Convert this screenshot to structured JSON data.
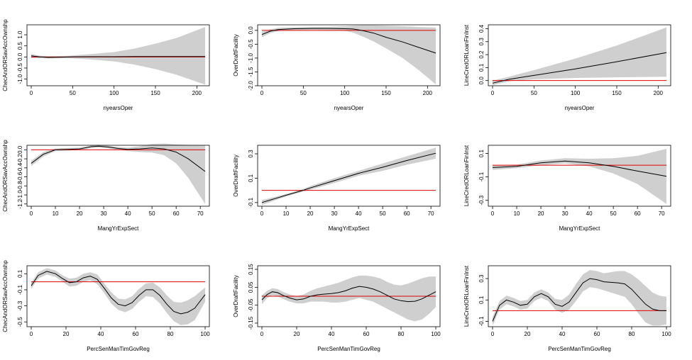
{
  "colors": {
    "band": "#cfcfcf",
    "fit": "#000000",
    "reference": "#e00000",
    "frame": "#000000"
  },
  "chart_data": [
    {
      "type": "line",
      "xlabel": "nyearsOper",
      "ylabel": "ChecAndORSavAccOwnshp",
      "xlim": [
        0,
        210
      ],
      "ylim": [
        -1.3,
        1.45
      ],
      "xticks": [
        0,
        50,
        100,
        150,
        200
      ],
      "yticks": [
        -1.0,
        -0.5,
        0.0,
        0.5,
        1.0
      ],
      "ytick_labels": [
        "-1.0",
        "-0.5",
        "0.0",
        "0.5",
        "1.0"
      ],
      "reference_line": 0,
      "x": [
        0,
        10,
        20,
        35,
        50,
        75,
        100,
        125,
        150,
        175,
        210
      ],
      "fit": [
        0.05,
        0.0,
        -0.02,
        -0.01,
        0.0,
        0.01,
        0.01,
        0.02,
        0.02,
        0.02,
        0.02
      ],
      "lower": [
        -0.05,
        -0.06,
        -0.07,
        -0.06,
        -0.07,
        -0.12,
        -0.2,
        -0.35,
        -0.55,
        -0.8,
        -1.25
      ],
      "upper": [
        0.13,
        0.06,
        0.03,
        0.04,
        0.07,
        0.14,
        0.22,
        0.38,
        0.6,
        0.85,
        1.35
      ]
    },
    {
      "type": "line",
      "xlabel": "nyearsOper",
      "ylabel": "OverDraftFacility",
      "xlim": [
        0,
        210
      ],
      "ylim": [
        -2.0,
        0.2
      ],
      "xticks": [
        0,
        50,
        100,
        150,
        200
      ],
      "yticks": [
        -2.0,
        -1.5,
        -1.0,
        -0.5,
        0.0
      ],
      "ytick_labels": [
        "-2.0",
        "-1.5",
        "-1.0",
        "-0.5",
        "0.0"
      ],
      "reference_line": 0,
      "x": [
        0,
        10,
        20,
        40,
        60,
        80,
        100,
        110,
        120,
        135,
        150,
        170,
        190,
        210
      ],
      "fit": [
        -0.15,
        -0.03,
        0.03,
        0.06,
        0.07,
        0.07,
        0.06,
        0.05,
        0.0,
        -0.1,
        -0.25,
        -0.42,
        -0.62,
        -0.82
      ],
      "lower": [
        -0.25,
        -0.1,
        -0.03,
        0.01,
        0.02,
        0.01,
        -0.02,
        -0.08,
        -0.2,
        -0.4,
        -0.65,
        -1.0,
        -1.45,
        -1.95
      ],
      "upper": [
        -0.05,
        0.04,
        0.09,
        0.11,
        0.12,
        0.13,
        0.15,
        0.17,
        0.18,
        0.18,
        0.17,
        0.15,
        0.12,
        0.1
      ]
    },
    {
      "type": "line",
      "xlabel": "nyearsOper",
      "ylabel": "LineCredORLoanFinInst",
      "xlim": [
        0,
        210
      ],
      "ylim": [
        -0.04,
        0.43
      ],
      "xticks": [
        0,
        50,
        100,
        150,
        200
      ],
      "yticks": [
        0.0,
        0.1,
        0.2,
        0.3,
        0.4
      ],
      "ytick_labels": [
        "0.0",
        "0.1",
        "0.2",
        "0.3",
        "0.4"
      ],
      "reference_line": 0,
      "x": [
        0,
        20,
        50,
        100,
        150,
        210
      ],
      "fit": [
        -0.02,
        0.01,
        0.04,
        0.09,
        0.145,
        0.215
      ],
      "lower": [
        -0.035,
        -0.005,
        0.01,
        0.02,
        0.025,
        0.03
      ],
      "upper": [
        0.0,
        0.03,
        0.08,
        0.17,
        0.27,
        0.41
      ]
    },
    {
      "type": "line",
      "xlabel": "MangYrExpSect",
      "ylabel": "ChecAndORSavAccOwnshp",
      "xlim": [
        0,
        72
      ],
      "ylim": [
        -1.25,
        0.1
      ],
      "xticks": [
        0,
        10,
        20,
        30,
        40,
        50,
        60,
        70
      ],
      "yticks": [
        -1.2,
        -1.0,
        -0.8,
        -0.6,
        -0.4,
        -0.2,
        0.0
      ],
      "ytick_labels": [
        "-1.2",
        "-1.0",
        "-0.8",
        "-0.6",
        "-0.4",
        "-0.2",
        "0.0"
      ],
      "reference_line": 0,
      "x": [
        0,
        5,
        10,
        15,
        20,
        25,
        28,
        32,
        36,
        40,
        45,
        50,
        55,
        60,
        65,
        72
      ],
      "fit": [
        -0.3,
        -0.1,
        0.0,
        0.01,
        0.02,
        0.07,
        0.08,
        0.06,
        0.03,
        0.01,
        0.02,
        0.04,
        0.02,
        -0.05,
        -0.2,
        -0.48
      ],
      "lower": [
        -0.36,
        -0.15,
        -0.03,
        -0.02,
        -0.01,
        0.04,
        0.05,
        0.03,
        0.0,
        -0.03,
        -0.05,
        -0.06,
        -0.12,
        -0.3,
        -0.62,
        -1.2
      ],
      "upper": [
        -0.24,
        -0.05,
        0.03,
        0.04,
        0.05,
        0.1,
        0.11,
        0.09,
        0.06,
        0.05,
        0.08,
        0.13,
        0.14,
        0.12,
        0.11,
        0.1
      ]
    },
    {
      "type": "line",
      "xlabel": "MangYrExpSect",
      "ylabel": "OverDraftFacility",
      "xlim": [
        0,
        72
      ],
      "ylim": [
        -0.13,
        0.37
      ],
      "xticks": [
        0,
        10,
        20,
        30,
        40,
        50,
        60,
        70
      ],
      "yticks": [
        -0.1,
        0.1,
        0.3
      ],
      "ytick_labels": [
        "-0.1",
        "0.1",
        "0.3"
      ],
      "reference_line": 0,
      "x": [
        0,
        5,
        10,
        17,
        20,
        30,
        40,
        50,
        60,
        72
      ],
      "fit": [
        -0.1,
        -0.07,
        -0.04,
        0.0,
        0.02,
        0.08,
        0.14,
        0.19,
        0.245,
        0.305
      ],
      "lower": [
        -0.12,
        -0.085,
        -0.05,
        -0.01,
        0.005,
        0.06,
        0.12,
        0.16,
        0.21,
        0.26
      ],
      "upper": [
        -0.08,
        -0.055,
        -0.03,
        0.01,
        0.035,
        0.1,
        0.16,
        0.22,
        0.28,
        0.35
      ]
    },
    {
      "type": "line",
      "xlabel": "MangYrExpSect",
      "ylabel": "LineCredORLoanFinInst",
      "xlim": [
        0,
        72
      ],
      "ylim": [
        -0.35,
        0.17
      ],
      "xticks": [
        0,
        10,
        20,
        30,
        40,
        50,
        60,
        70
      ],
      "yticks": [
        -0.3,
        -0.1,
        0.1
      ],
      "ytick_labels": [
        "-0.3",
        "-0.1",
        "0.1"
      ],
      "reference_line": 0,
      "x": [
        0,
        10,
        20,
        30,
        40,
        50,
        60,
        72
      ],
      "fit": [
        -0.02,
        -0.01,
        0.02,
        0.035,
        0.02,
        -0.01,
        -0.05,
        -0.095
      ],
      "lower": [
        -0.04,
        -0.025,
        0.0,
        0.015,
        -0.01,
        -0.07,
        -0.16,
        -0.33
      ],
      "upper": [
        0.0,
        0.005,
        0.04,
        0.06,
        0.055,
        0.06,
        0.08,
        0.14
      ]
    },
    {
      "type": "line",
      "xlabel": "PercSenManTimGovReg",
      "ylabel": "ChecAndORSavAccOwnshp",
      "xlim": [
        0,
        100
      ],
      "ylim": [
        -0.56,
        0.2
      ],
      "xticks": [
        0,
        20,
        40,
        60,
        80,
        100
      ],
      "yticks": [
        -0.5,
        -0.3,
        -0.1,
        0.1
      ],
      "ytick_labels": [
        "-0.5",
        "-0.3",
        "-0.1",
        "0.1"
      ],
      "reference_line": 0,
      "x": [
        0,
        4,
        9,
        14,
        18,
        22,
        26,
        30,
        34,
        38,
        42,
        46,
        50,
        54,
        58,
        62,
        66,
        70,
        74,
        78,
        82,
        86,
        90,
        94,
        100
      ],
      "fit": [
        -0.05,
        0.08,
        0.13,
        0.1,
        0.04,
        -0.01,
        0.0,
        0.05,
        0.07,
        0.03,
        -0.08,
        -0.2,
        -0.28,
        -0.3,
        -0.26,
        -0.17,
        -0.1,
        -0.1,
        -0.17,
        -0.28,
        -0.37,
        -0.4,
        -0.38,
        -0.33,
        -0.16
      ],
      "lower": [
        -0.09,
        0.04,
        0.09,
        0.06,
        0.0,
        -0.06,
        -0.05,
        0.0,
        0.02,
        -0.03,
        -0.14,
        -0.27,
        -0.35,
        -0.38,
        -0.34,
        -0.25,
        -0.18,
        -0.19,
        -0.27,
        -0.39,
        -0.49,
        -0.54,
        -0.53,
        -0.48,
        -0.25
      ],
      "upper": [
        -0.01,
        0.12,
        0.17,
        0.14,
        0.08,
        0.04,
        0.05,
        0.1,
        0.12,
        0.09,
        -0.02,
        -0.13,
        -0.21,
        -0.22,
        -0.18,
        -0.09,
        -0.02,
        -0.01,
        -0.07,
        -0.17,
        -0.25,
        -0.26,
        -0.23,
        -0.18,
        -0.07
      ]
    },
    {
      "type": "line",
      "xlabel": "PercSenManTimGovReg",
      "ylabel": "OverDraftFacility",
      "xlim": [
        0,
        100
      ],
      "ylim": [
        -0.17,
        0.17
      ],
      "xticks": [
        0,
        20,
        40,
        60,
        80,
        100
      ],
      "yticks": [
        -0.15,
        -0.05,
        0.05,
        0.15
      ],
      "ytick_labels": [
        "-0.15",
        "-0.05",
        "0.05",
        "0.15"
      ],
      "reference_line": 0,
      "x": [
        0,
        3,
        6,
        9,
        12,
        16,
        20,
        24,
        28,
        32,
        36,
        40,
        44,
        48,
        52,
        56,
        60,
        64,
        68,
        72,
        76,
        80,
        84,
        88,
        92,
        96,
        100
      ],
      "fit": [
        -0.02,
        0.01,
        0.025,
        0.02,
        0.005,
        -0.01,
        -0.02,
        -0.015,
        0.0,
        0.008,
        0.012,
        0.015,
        0.02,
        0.03,
        0.045,
        0.055,
        0.05,
        0.04,
        0.025,
        0.005,
        -0.015,
        -0.025,
        -0.03,
        -0.028,
        -0.015,
        0.005,
        0.025
      ],
      "lower": [
        -0.045,
        -0.01,
        0.005,
        0.0,
        -0.015,
        -0.03,
        -0.04,
        -0.04,
        -0.03,
        -0.03,
        -0.03,
        -0.035,
        -0.035,
        -0.03,
        -0.02,
        -0.01,
        -0.02,
        -0.03,
        -0.05,
        -0.07,
        -0.09,
        -0.11,
        -0.13,
        -0.14,
        -0.13,
        -0.1,
        -0.06
      ],
      "upper": [
        0.005,
        0.03,
        0.045,
        0.04,
        0.025,
        0.01,
        0.0,
        0.01,
        0.03,
        0.045,
        0.055,
        0.065,
        0.075,
        0.09,
        0.105,
        0.115,
        0.115,
        0.11,
        0.1,
        0.08,
        0.065,
        0.06,
        0.07,
        0.085,
        0.1,
        0.11,
        0.11
      ]
    },
    {
      "type": "line",
      "xlabel": "PercSenManTimGovReg",
      "ylabel": "LineCredORLoanFinInst",
      "xlim": [
        0,
        100
      ],
      "ylim": [
        -0.15,
        0.42
      ],
      "xticks": [
        0,
        20,
        40,
        60,
        80,
        100
      ],
      "yticks": [
        -0.1,
        0.1,
        0.3
      ],
      "ytick_labels": [
        "-0.1",
        "0.1",
        "0.3"
      ],
      "reference_line": 0,
      "x": [
        0,
        4,
        8,
        12,
        16,
        20,
        24,
        28,
        32,
        36,
        40,
        44,
        48,
        52,
        56,
        60,
        64,
        68,
        72,
        76,
        80,
        84,
        88,
        92,
        96,
        100
      ],
      "fit": [
        -0.1,
        0.05,
        0.1,
        0.08,
        0.05,
        0.06,
        0.13,
        0.16,
        0.13,
        0.06,
        0.04,
        0.08,
        0.17,
        0.26,
        0.3,
        0.29,
        0.27,
        0.265,
        0.26,
        0.25,
        0.2,
        0.13,
        0.06,
        0.015,
        0.0,
        0.0
      ],
      "lower": [
        -0.14,
        0.01,
        0.06,
        0.04,
        0.01,
        0.02,
        0.09,
        0.12,
        0.09,
        0.01,
        -0.02,
        0.01,
        0.09,
        0.18,
        0.22,
        0.21,
        0.19,
        0.17,
        0.15,
        0.13,
        0.06,
        -0.03,
        -0.11,
        -0.14,
        -0.14,
        -0.13
      ],
      "upper": [
        -0.06,
        0.09,
        0.14,
        0.12,
        0.09,
        0.1,
        0.17,
        0.2,
        0.17,
        0.11,
        0.1,
        0.15,
        0.25,
        0.34,
        0.38,
        0.37,
        0.35,
        0.36,
        0.37,
        0.37,
        0.34,
        0.29,
        0.23,
        0.17,
        0.14,
        0.13
      ]
    }
  ]
}
